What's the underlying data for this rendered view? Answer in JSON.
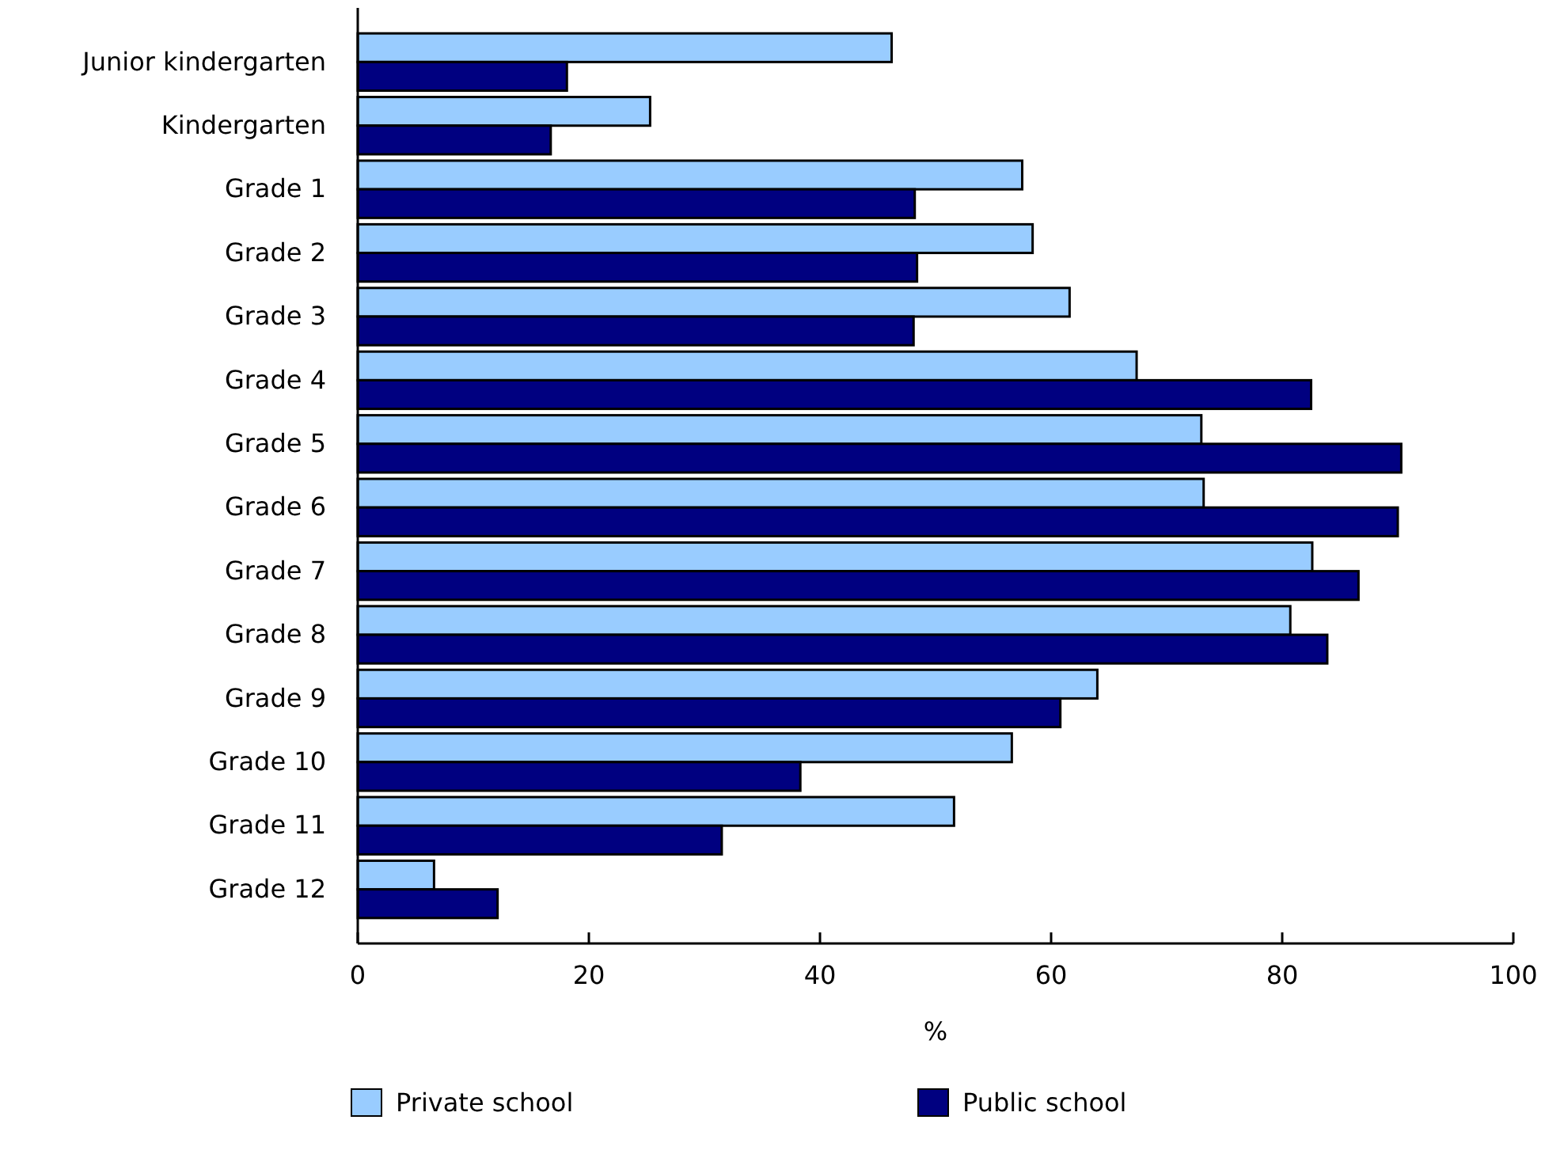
{
  "chart_data": {
    "type": "bar",
    "orientation": "horizontal",
    "xlabel": "%",
    "categories": [
      "Junior kindergarten",
      "Kindergarten",
      "Grade 1",
      "Grade 2",
      "Grade 3",
      "Grade 4",
      "Grade 5",
      "Grade 6",
      "Grade 7",
      "Grade 8",
      "Grade 9",
      "Grade 10",
      "Grade 11",
      "Grade 12"
    ],
    "series": [
      {
        "name": "Private school",
        "color": "#99ccff",
        "values": [
          46.2,
          25.3,
          57.5,
          58.4,
          61.6,
          67.4,
          73.0,
          73.2,
          82.6,
          80.7,
          64.0,
          56.6,
          51.6,
          6.6
        ]
      },
      {
        "name": "Public school",
        "color": "#000080",
        "values": [
          18.1,
          16.7,
          48.2,
          48.4,
          48.1,
          82.5,
          90.3,
          90.0,
          86.6,
          83.9,
          60.8,
          38.3,
          31.5,
          12.1
        ]
      }
    ],
    "xlim": [
      0,
      100
    ],
    "xticks": [
      0,
      20,
      40,
      60,
      80,
      100
    ],
    "grid": false,
    "legend": "bottom"
  }
}
